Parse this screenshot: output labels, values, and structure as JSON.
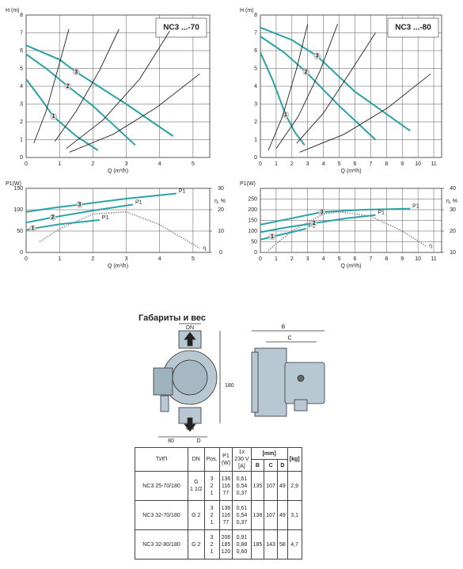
{
  "chart_data": [
    {
      "type": "line",
      "title": "NC3 ...-70",
      "x_label": "Q (m³/h)",
      "y_label": "H (m)",
      "xlim": [
        0,
        5.5
      ],
      "xticks": [
        0,
        1,
        2,
        3,
        4,
        5
      ],
      "ylim": [
        0,
        8
      ],
      "yticks": [
        0,
        1,
        2,
        3,
        4,
        5,
        6,
        7,
        8
      ],
      "grid": true,
      "series": [
        {
          "name": "1",
          "color": "#2aa3a8",
          "x": [
            0,
            0.4,
            0.82,
            1.5,
            2.15
          ],
          "values": [
            4.4,
            3.4,
            2.3,
            1.2,
            0.4
          ]
        },
        {
          "name": "2",
          "color": "#2aa3a8",
          "x": [
            0,
            0.6,
            1.25,
            2,
            3.27
          ],
          "values": [
            5.8,
            5.0,
            4.0,
            2.9,
            0.7
          ]
        },
        {
          "name": "3",
          "color": "#2aa3a8",
          "x": [
            0,
            1,
            1.5,
            3,
            4.4
          ],
          "values": [
            6.3,
            5.5,
            4.8,
            3.0,
            1.2
          ]
        },
        {
          "color": "#222222",
          "x": [
            0.23,
            0.6,
            1,
            1.28
          ],
          "values": [
            0.8,
            2.6,
            5.3,
            7.2
          ]
        },
        {
          "color": "#222222",
          "x": [
            0.86,
            1.5,
            2.2,
            2.78
          ],
          "values": [
            0.9,
            2.6,
            4.9,
            7.2
          ]
        },
        {
          "color": "#222222",
          "x": [
            1.2,
            2.3,
            3.4,
            4.3
          ],
          "values": [
            0.5,
            2.1,
            4.4,
            7.1
          ]
        },
        {
          "color": "#222222",
          "x": [
            1.3,
            2.6,
            3.9,
            5.2
          ],
          "values": [
            0.3,
            1.3,
            2.8,
            4.7
          ]
        }
      ]
    },
    {
      "type": "line",
      "title": "NC3 ...-80",
      "x_label": "Q (m³/h)",
      "y_label": "H (m)",
      "xlim": [
        0,
        11.5
      ],
      "xticks": [
        0,
        1,
        2,
        3,
        4,
        5,
        6,
        7,
        8,
        9,
        10,
        11
      ],
      "ylim": [
        0,
        8
      ],
      "yticks": [
        0,
        1,
        2,
        3,
        4,
        5,
        6,
        7,
        8
      ],
      "grid": true,
      "series": [
        {
          "name": "1",
          "color": "#2aa3a8",
          "x": [
            0,
            0.8,
            1.6,
            2.2,
            2.8
          ],
          "values": [
            5.9,
            4.3,
            2.4,
            1.4,
            0.7
          ]
        },
        {
          "name": "2",
          "color": "#2aa3a8",
          "x": [
            0,
            1.5,
            2.9,
            5,
            7.3
          ],
          "values": [
            6.8,
            5.9,
            4.8,
            2.9,
            1.0
          ]
        },
        {
          "name": "3",
          "color": "#2aa3a8",
          "x": [
            0,
            2,
            3.6,
            6,
            9.5
          ],
          "values": [
            7.3,
            6.6,
            5.7,
            3.7,
            1.5
          ]
        },
        {
          "color": "#222222",
          "x": [
            0.5,
            1.4,
            2.3,
            3.0
          ],
          "values": [
            0.4,
            2.3,
            5.0,
            7.5
          ]
        },
        {
          "color": "#222222",
          "x": [
            1.0,
            2.4,
            3.8,
            4.9
          ],
          "values": [
            0.5,
            2.3,
            4.9,
            7.5
          ]
        },
        {
          "color": "#222222",
          "x": [
            2.3,
            4,
            5.7,
            7.3
          ],
          "values": [
            0.8,
            2.5,
            4.8,
            7.0
          ]
        },
        {
          "color": "#222222",
          "x": [
            2.5,
            5.3,
            8.1,
            10.8
          ],
          "values": [
            0.3,
            1.3,
            2.8,
            4.7
          ]
        }
      ]
    },
    {
      "type": "line",
      "x_label": "Q (m³/h)",
      "y_label": "P1(W)",
      "y2_label": "η, %",
      "xlim": [
        0,
        5.5
      ],
      "xticks": [
        0,
        1,
        2,
        3,
        4,
        5
      ],
      "ylim": [
        0,
        150
      ],
      "yticks": [
        0,
        50,
        100,
        150
      ],
      "y2lim": [
        0,
        30
      ],
      "y2ticks": [
        0,
        10,
        20,
        30
      ],
      "grid": true,
      "annotations": [
        "P1",
        "P1",
        "P1"
      ],
      "series": [
        {
          "name": "1",
          "color": "#2aa3a8",
          "x": [
            0,
            0.1,
            0.2,
            1,
            2.2
          ],
          "values": [
            52,
            54,
            56,
            66,
            76
          ]
        },
        {
          "name": "2",
          "color": "#2aa3a8",
          "x": [
            0,
            0.4,
            0.8,
            2,
            3.2
          ],
          "values": [
            70,
            76,
            82,
            98,
            112
          ]
        },
        {
          "name": "3",
          "color": "#2aa3a8",
          "x": [
            0,
            0.8,
            1.6,
            3,
            4.5
          ],
          "values": [
            95,
            104,
            112,
            126,
            138
          ]
        },
        {
          "name": "η",
          "color": "#888888",
          "axis": "y2",
          "x": [
            0.4,
            1,
            2,
            3,
            4,
            5.2
          ],
          "values": [
            5,
            11,
            18,
            19,
            13,
            2
          ]
        }
      ]
    },
    {
      "type": "line",
      "x_label": "Q (m³/h)",
      "y_label": "P1(W)",
      "y2_label": "η, %",
      "xlim": [
        0,
        11.5
      ],
      "xticks": [
        0,
        1,
        2,
        3,
        4,
        5,
        6,
        7,
        8,
        9,
        10,
        11
      ],
      "ylim": [
        0,
        300
      ],
      "yticks": [
        0,
        50,
        100,
        150,
        200,
        250
      ],
      "y2lim": [
        10,
        40
      ],
      "y2ticks": [
        10,
        20,
        30,
        40
      ],
      "grid": true,
      "annotations": [
        "P1",
        "P1",
        "P1"
      ],
      "series": [
        {
          "name": "1",
          "color": "#2aa3a8",
          "x": [
            0,
            0.4,
            0.75,
            2,
            2.9
          ],
          "values": [
            60,
            67,
            74,
            95,
            112
          ]
        },
        {
          "name": "2",
          "color": "#2aa3a8",
          "x": [
            0,
            1.5,
            3.4,
            5.5,
            7.3
          ],
          "values": [
            95,
            115,
            137,
            160,
            175
          ]
        },
        {
          "name": "3",
          "color": "#2aa3a8",
          "x": [
            0,
            2,
            3.9,
            6.5,
            9.5
          ],
          "values": [
            130,
            160,
            189,
            200,
            205
          ]
        },
        {
          "name": "η",
          "color": "#888888",
          "axis": "y2",
          "x": [
            0.5,
            2,
            4,
            5,
            7,
            9,
            10.5
          ],
          "values": [
            11,
            20,
            28,
            29,
            27,
            20,
            13
          ]
        }
      ]
    }
  ],
  "dimensions": {
    "title": "Габариты и вес",
    "labels": [
      "DN",
      "180",
      "DN",
      "80",
      "D",
      "B",
      "C"
    ]
  },
  "table": {
    "header": [
      "ТИП",
      "DN",
      "Pos.",
      "P1\n(W)",
      "1x\n230 V\n[A]",
      "[mm]",
      "[kg]"
    ],
    "subheader": [
      "B",
      "C",
      "D"
    ],
    "rows": [
      [
        "NC3 25-70/180",
        [
          "G",
          "1 1/2"
        ],
        [
          "3",
          "2",
          "1"
        ],
        [
          "136",
          "116",
          "77"
        ],
        [
          "0,61",
          "0,54",
          "0,37"
        ],
        "135",
        "107",
        "49",
        "2,9"
      ],
      [
        "NC3 32-70/180",
        [
          "G 2"
        ],
        [
          "3",
          "2",
          "1"
        ],
        [
          "136",
          "116",
          "77"
        ],
        [
          "0,61",
          "0,54",
          "0,37"
        ],
        "138",
        "107",
        "49",
        "3,1"
      ],
      [
        "NC3 32-80/180",
        [
          "G 2"
        ],
        [
          "3",
          "2",
          "1"
        ],
        [
          "206",
          "185",
          "120"
        ],
        [
          "0,91",
          "0,88",
          "0,60"
        ],
        "185",
        "143",
        "58",
        "4,7"
      ]
    ]
  }
}
